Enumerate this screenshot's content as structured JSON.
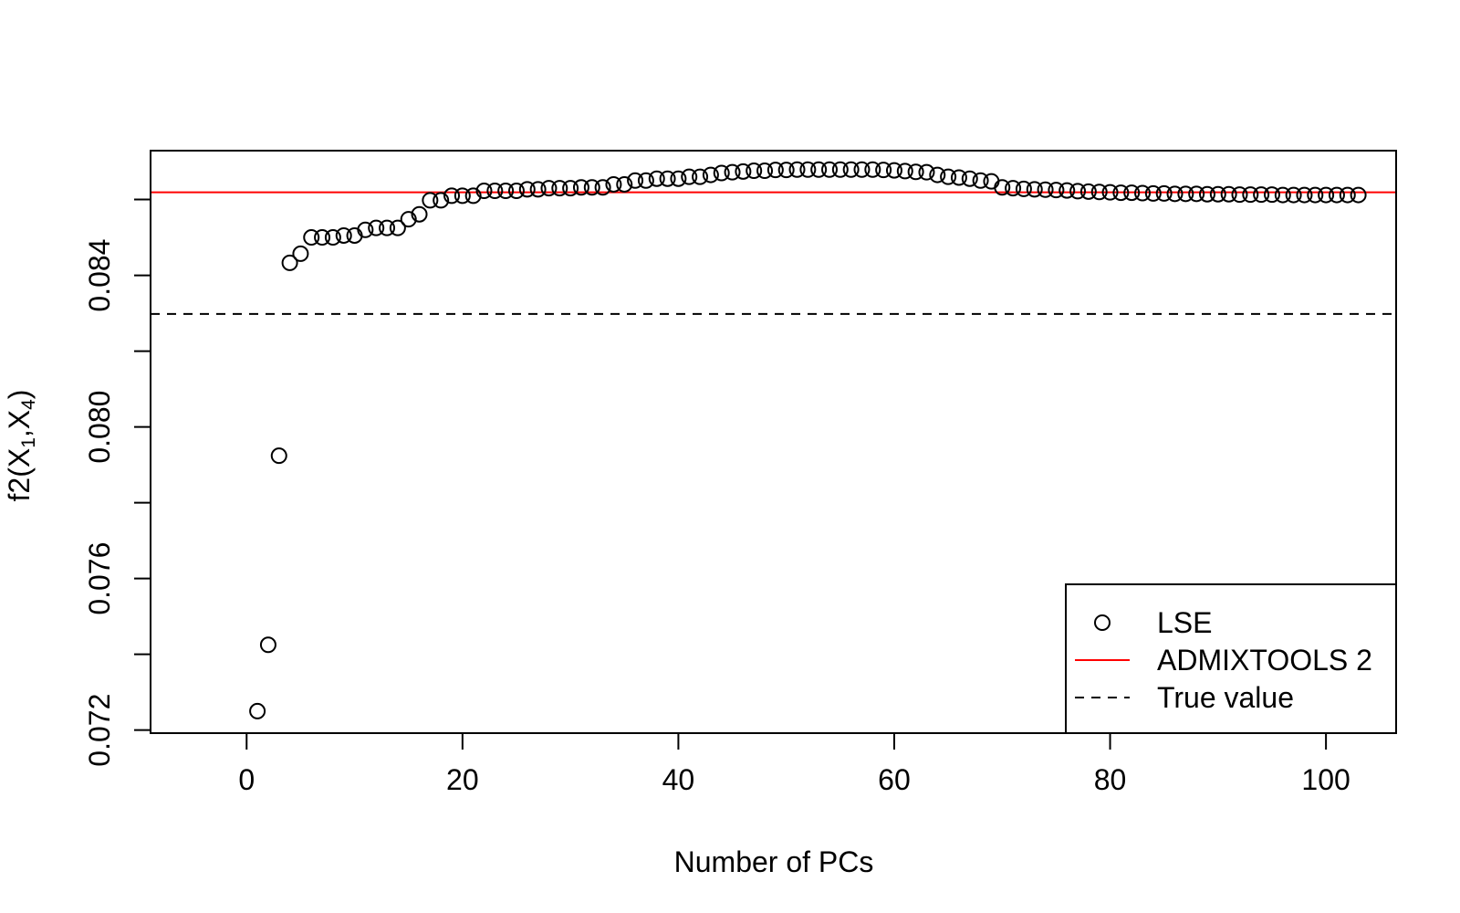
{
  "chart_data": {
    "type": "scatter",
    "xlabel": "Number of PCs",
    "ylabel": "f2(X1,X4)",
    "ylabel_base": "f2(X",
    "ylabel_sub1": "1",
    "ylabel_mid": ",X",
    "ylabel_sub2": "4",
    "ylabel_end": ")",
    "xlim": [
      -8.9,
      106.5
    ],
    "ylim": [
      0.07192,
      0.08729
    ],
    "xticks": [
      0,
      20,
      40,
      60,
      80,
      100
    ],
    "xtick_labels": [
      "0",
      "20",
      "40",
      "60",
      "80",
      "100"
    ],
    "yticks": [
      0.072,
      0.074,
      0.076,
      0.078,
      0.08,
      0.082,
      0.084,
      0.086
    ],
    "yticks_labeled": [
      0.072,
      0.076,
      0.08,
      0.084
    ],
    "ytick_labels": [
      "0.072",
      "0.076",
      "0.080",
      "0.084"
    ],
    "legend_position": "bottom-right",
    "legend": [
      {
        "label": "LSE",
        "type": "point"
      },
      {
        "label": "ADMIXTOOLS 2",
        "type": "line",
        "color": "#ff0000"
      },
      {
        "label": "True value",
        "type": "dashed",
        "color": "#000000"
      }
    ],
    "reference_lines": [
      {
        "name": "ADMIXTOOLS 2",
        "y": 0.08619,
        "color": "#ff0000",
        "style": "solid"
      },
      {
        "name": "True value",
        "y": 0.08298,
        "color": "#000000",
        "style": "dashed"
      }
    ],
    "series": [
      {
        "name": "LSE",
        "x": [
          1,
          2,
          3,
          4,
          5,
          6,
          7,
          8,
          9,
          10,
          11,
          12,
          13,
          14,
          15,
          16,
          17,
          18,
          19,
          20,
          21,
          22,
          23,
          24,
          25,
          26,
          27,
          28,
          29,
          30,
          31,
          32,
          33,
          34,
          35,
          36,
          37,
          38,
          39,
          40,
          41,
          42,
          43,
          44,
          45,
          46,
          47,
          48,
          49,
          50,
          51,
          52,
          53,
          54,
          55,
          56,
          57,
          58,
          59,
          60,
          61,
          62,
          63,
          64,
          65,
          66,
          67,
          68,
          69,
          70,
          71,
          72,
          73,
          74,
          75,
          76,
          77,
          78,
          79,
          80,
          81,
          82,
          83,
          84,
          85,
          86,
          87,
          88,
          89,
          90,
          91,
          92,
          93,
          94,
          95,
          96,
          97,
          98,
          99,
          100,
          101,
          102,
          103
        ],
        "y": [
          0.0725,
          0.07425,
          0.07924,
          0.08433,
          0.08457,
          0.085,
          0.085,
          0.085,
          0.08505,
          0.08505,
          0.0852,
          0.08525,
          0.08525,
          0.08525,
          0.08548,
          0.08561,
          0.08598,
          0.08598,
          0.0861,
          0.0861,
          0.0861,
          0.08623,
          0.08623,
          0.08623,
          0.08623,
          0.08627,
          0.08627,
          0.0863,
          0.0863,
          0.0863,
          0.08632,
          0.08632,
          0.08632,
          0.0864,
          0.0864,
          0.0865,
          0.0865,
          0.08655,
          0.08655,
          0.08655,
          0.0866,
          0.0866,
          0.08665,
          0.0867,
          0.08672,
          0.08674,
          0.08676,
          0.08676,
          0.08678,
          0.08678,
          0.08679,
          0.08679,
          0.08679,
          0.08679,
          0.08679,
          0.08679,
          0.08679,
          0.08679,
          0.08678,
          0.08677,
          0.08675,
          0.08673,
          0.08672,
          0.08665,
          0.0866,
          0.08658,
          0.08655,
          0.0865,
          0.08648,
          0.08632,
          0.0863,
          0.08628,
          0.08627,
          0.08626,
          0.08625,
          0.08624,
          0.08622,
          0.08621,
          0.0862,
          0.08619,
          0.08618,
          0.08618,
          0.08617,
          0.08616,
          0.08616,
          0.08615,
          0.08615,
          0.08615,
          0.08614,
          0.08614,
          0.08614,
          0.08613,
          0.08613,
          0.08613,
          0.08613,
          0.08612,
          0.08612,
          0.08612,
          0.08612,
          0.08612,
          0.08612,
          0.08612,
          0.08612
        ]
      }
    ]
  }
}
